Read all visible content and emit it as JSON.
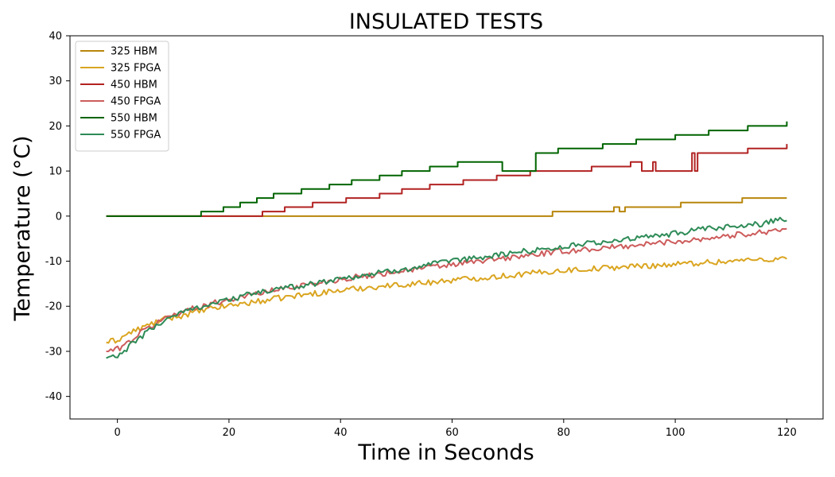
{
  "chart_data": {
    "type": "line",
    "title": "INSULATED TESTS",
    "xlabel": "Time in Seconds",
    "ylabel": "Temperature (°C)",
    "xlim": [
      -8.5,
      126.5
    ],
    "ylim": [
      -45,
      40
    ],
    "xticks": [
      0,
      20,
      40,
      60,
      80,
      100,
      120
    ],
    "yticks": [
      -40,
      -30,
      -20,
      -10,
      0,
      10,
      20,
      30,
      40
    ],
    "grid": false,
    "legend_position": "top-left",
    "series": [
      {
        "name": "325 HBM",
        "color": "#b8860b",
        "kind": "step",
        "points": [
          [
            -2,
            0
          ],
          [
            78,
            0
          ],
          [
            78,
            1
          ],
          [
            89,
            1
          ],
          [
            89,
            2
          ],
          [
            90,
            2
          ],
          [
            90,
            1
          ],
          [
            91,
            1
          ],
          [
            91,
            2
          ],
          [
            101,
            2
          ],
          [
            101,
            3
          ],
          [
            112,
            3
          ],
          [
            112,
            4
          ],
          [
            120,
            4
          ]
        ]
      },
      {
        "name": "325 FPGA",
        "color": "#daa520",
        "kind": "noisy",
        "points": [
          [
            -2,
            -28
          ],
          [
            0,
            -27.5
          ],
          [
            2,
            -26
          ],
          [
            4,
            -25
          ],
          [
            6,
            -24
          ],
          [
            8,
            -23
          ],
          [
            10,
            -22.5
          ],
          [
            15,
            -21
          ],
          [
            20,
            -19.8
          ],
          [
            25,
            -19
          ],
          [
            30,
            -18
          ],
          [
            35,
            -17.2
          ],
          [
            40,
            -16.5
          ],
          [
            45,
            -15.8
          ],
          [
            50,
            -15.3
          ],
          [
            55,
            -14.8
          ],
          [
            60,
            -14.2
          ],
          [
            65,
            -13.7
          ],
          [
            70,
            -13.2
          ],
          [
            75,
            -12.6
          ],
          [
            80,
            -12
          ],
          [
            85,
            -11.7
          ],
          [
            90,
            -11.3
          ],
          [
            95,
            -11
          ],
          [
            100,
            -10.7
          ],
          [
            105,
            -10.3
          ],
          [
            110,
            -10
          ],
          [
            115,
            -9.6
          ],
          [
            120,
            -9.5
          ]
        ]
      },
      {
        "name": "450 HBM",
        "color": "#b22222",
        "kind": "step",
        "points": [
          [
            -2,
            0
          ],
          [
            15,
            0
          ],
          [
            26,
            0
          ],
          [
            26,
            1
          ],
          [
            30,
            1
          ],
          [
            30,
            2
          ],
          [
            35,
            2
          ],
          [
            35,
            3
          ],
          [
            41,
            3
          ],
          [
            41,
            4
          ],
          [
            46,
            4
          ],
          [
            47,
            4
          ],
          [
            47,
            5
          ],
          [
            51,
            5
          ],
          [
            51,
            6
          ],
          [
            56,
            6
          ],
          [
            56,
            7
          ],
          [
            62,
            7
          ],
          [
            62,
            8
          ],
          [
            68,
            8
          ],
          [
            68,
            9
          ],
          [
            74,
            9
          ],
          [
            74,
            10
          ],
          [
            85,
            10
          ],
          [
            85,
            11
          ],
          [
            92,
            11
          ],
          [
            92,
            12
          ],
          [
            94,
            12
          ],
          [
            94,
            10
          ],
          [
            96,
            10
          ],
          [
            96,
            12
          ],
          [
            96.5,
            12
          ],
          [
            96.5,
            10
          ],
          [
            103,
            10
          ],
          [
            103,
            14
          ],
          [
            103.5,
            14
          ],
          [
            103.5,
            10
          ],
          [
            104,
            10
          ],
          [
            104,
            14
          ],
          [
            113,
            14
          ],
          [
            113,
            15
          ],
          [
            120,
            15
          ],
          [
            120,
            16
          ]
        ]
      },
      {
        "name": "450 FPGA",
        "color": "#cd5c5c",
        "kind": "noisy",
        "points": [
          [
            -2,
            -30
          ],
          [
            0,
            -29.5
          ],
          [
            2,
            -28
          ],
          [
            4,
            -26
          ],
          [
            6,
            -24.5
          ],
          [
            8,
            -23
          ],
          [
            10,
            -21.8
          ],
          [
            15,
            -20
          ],
          [
            20,
            -18.5
          ],
          [
            25,
            -17.2
          ],
          [
            30,
            -16
          ],
          [
            35,
            -15
          ],
          [
            40,
            -14
          ],
          [
            45,
            -13.2
          ],
          [
            50,
            -12.3
          ],
          [
            55,
            -11.5
          ],
          [
            60,
            -10.8
          ],
          [
            65,
            -10
          ],
          [
            70,
            -9.3
          ],
          [
            75,
            -8.5
          ],
          [
            80,
            -7.8
          ],
          [
            85,
            -7.3
          ],
          [
            90,
            -6.8
          ],
          [
            95,
            -6.2
          ],
          [
            100,
            -5.6
          ],
          [
            105,
            -5
          ],
          [
            110,
            -4.3
          ],
          [
            115,
            -3.6
          ],
          [
            120,
            -2.8
          ]
        ]
      },
      {
        "name": "550 HBM",
        "color": "#006400",
        "kind": "step",
        "points": [
          [
            -2,
            0
          ],
          [
            15,
            0
          ],
          [
            15,
            1
          ],
          [
            19,
            1
          ],
          [
            19,
            2
          ],
          [
            22,
            2
          ],
          [
            22,
            3
          ],
          [
            25,
            3
          ],
          [
            25,
            4
          ],
          [
            28,
            4
          ],
          [
            28,
            5
          ],
          [
            33,
            5
          ],
          [
            33,
            6
          ],
          [
            38,
            6
          ],
          [
            38,
            7
          ],
          [
            42,
            7
          ],
          [
            42,
            8
          ],
          [
            47,
            8
          ],
          [
            47,
            9
          ],
          [
            51,
            9
          ],
          [
            51,
            10
          ],
          [
            56,
            10
          ],
          [
            56,
            11
          ],
          [
            61,
            11
          ],
          [
            61,
            12
          ],
          [
            69,
            12
          ],
          [
            69,
            10
          ],
          [
            75,
            10
          ],
          [
            75,
            14
          ],
          [
            79,
            14
          ],
          [
            79,
            15
          ],
          [
            82,
            15
          ],
          [
            82,
            15
          ],
          [
            87,
            15
          ],
          [
            87,
            16
          ],
          [
            93,
            16
          ],
          [
            93,
            17
          ],
          [
            100,
            17
          ],
          [
            100,
            18
          ],
          [
            106,
            18
          ],
          [
            106,
            19
          ],
          [
            113,
            19
          ],
          [
            113,
            20
          ],
          [
            120,
            20
          ],
          [
            120,
            21
          ]
        ]
      },
      {
        "name": "550 FPGA",
        "color": "#2e8b57",
        "kind": "noisy",
        "points": [
          [
            -2,
            -31.5
          ],
          [
            -1,
            -31
          ],
          [
            0,
            -31.5
          ],
          [
            2,
            -29
          ],
          [
            4,
            -27
          ],
          [
            5,
            -26
          ],
          [
            8,
            -23.5
          ],
          [
            10,
            -22
          ],
          [
            15,
            -20
          ],
          [
            20,
            -18.5
          ],
          [
            25,
            -17
          ],
          [
            30,
            -16
          ],
          [
            35,
            -15
          ],
          [
            40,
            -13.8
          ],
          [
            45,
            -13
          ],
          [
            50,
            -12
          ],
          [
            55,
            -11
          ],
          [
            60,
            -10
          ],
          [
            65,
            -9.2
          ],
          [
            70,
            -8.3
          ],
          [
            75,
            -7.5
          ],
          [
            80,
            -6.8
          ],
          [
            85,
            -6
          ],
          [
            90,
            -5.3
          ],
          [
            95,
            -4.7
          ],
          [
            100,
            -3.8
          ],
          [
            105,
            -3
          ],
          [
            110,
            -2.4
          ],
          [
            115,
            -1.8
          ],
          [
            119,
            -0.5
          ],
          [
            120,
            -1
          ]
        ]
      }
    ]
  }
}
